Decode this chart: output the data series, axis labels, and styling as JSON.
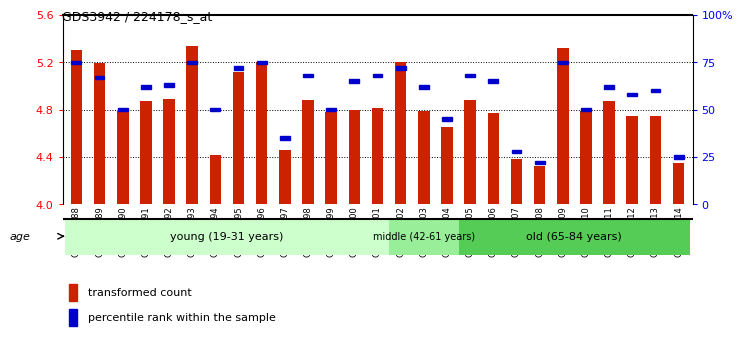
{
  "title": "GDS3942 / 224178_s_at",
  "samples": [
    "GSM812988",
    "GSM812989",
    "GSM812990",
    "GSM812991",
    "GSM812992",
    "GSM812993",
    "GSM812994",
    "GSM812995",
    "GSM812996",
    "GSM812997",
    "GSM812998",
    "GSM812999",
    "GSM813000",
    "GSM813001",
    "GSM813002",
    "GSM813003",
    "GSM813004",
    "GSM813005",
    "GSM813006",
    "GSM813007",
    "GSM813008",
    "GSM813009",
    "GSM813010",
    "GSM813011",
    "GSM813012",
    "GSM813013",
    "GSM813014"
  ],
  "transformed_count": [
    5.3,
    5.19,
    4.79,
    4.87,
    4.89,
    5.34,
    4.42,
    5.12,
    5.2,
    4.46,
    4.88,
    4.78,
    4.8,
    4.81,
    5.2,
    4.79,
    4.65,
    4.88,
    4.77,
    4.38,
    4.32,
    5.32,
    4.79,
    4.87,
    4.75,
    4.75,
    4.35
  ],
  "percentile_rank": [
    75,
    67,
    50,
    62,
    63,
    75,
    50,
    72,
    75,
    35,
    68,
    50,
    65,
    68,
    72,
    62,
    45,
    68,
    65,
    28,
    22,
    75,
    50,
    62,
    58,
    60,
    25
  ],
  "bar_color": "#cc2200",
  "dot_color": "#0000cc",
  "ylim_left": [
    4.0,
    5.6
  ],
  "ylim_right": [
    0,
    100
  ],
  "yticks_left": [
    4.0,
    4.4,
    4.8,
    5.2,
    5.6
  ],
  "yticks_right": [
    0,
    25,
    50,
    75,
    100
  ],
  "ytick_labels_right": [
    "0",
    "25",
    "50",
    "75",
    "100%"
  ],
  "grid_values": [
    4.4,
    4.8,
    5.2
  ],
  "young_indices": [
    0,
    13
  ],
  "middle_indices": [
    14,
    16
  ],
  "old_indices": [
    17,
    26
  ],
  "group_labels": [
    "young (19-31 years)",
    "middle (42-61 years)",
    "old (65-84 years)"
  ],
  "group_colors": [
    "#ccffcc",
    "#99ee99",
    "#55cc55"
  ],
  "age_label": "age",
  "legend_items": [
    "transformed count",
    "percentile rank within the sample"
  ],
  "legend_colors": [
    "#cc2200",
    "#0000cc"
  ],
  "plot_bg": "#ffffff",
  "base_value": 4.0,
  "bar_width": 0.5
}
